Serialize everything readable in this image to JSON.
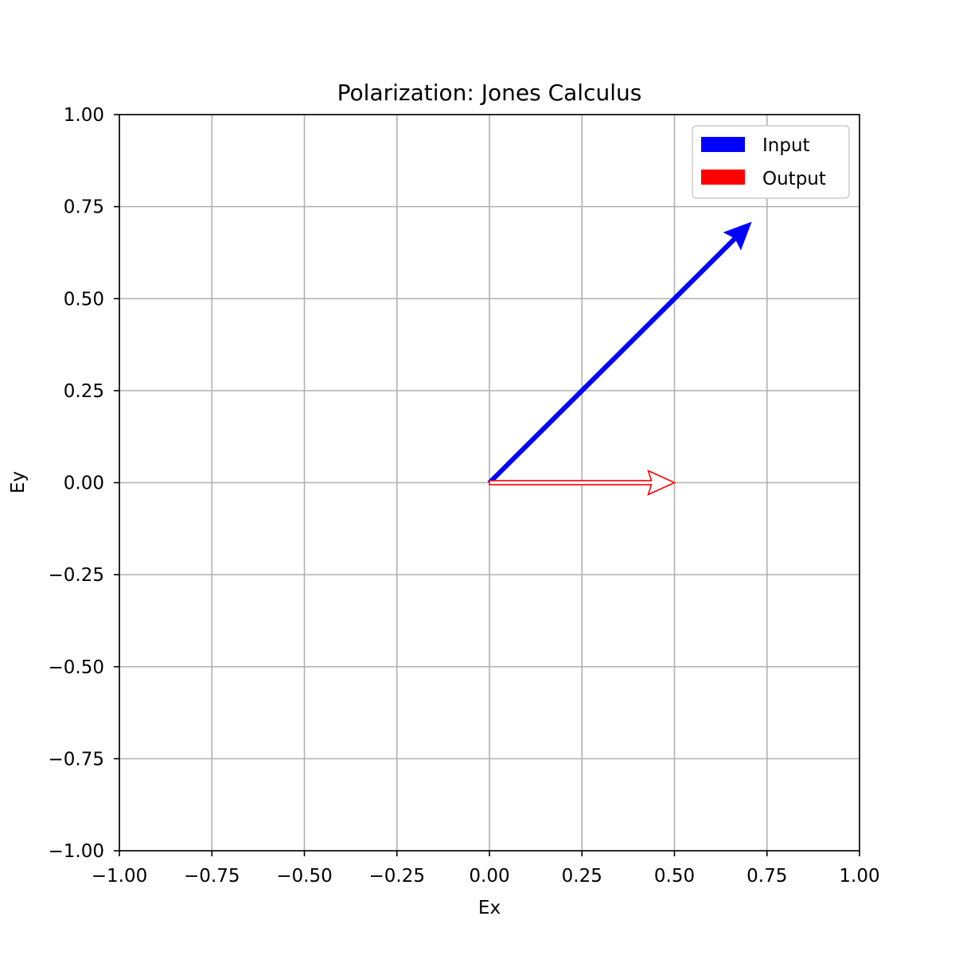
{
  "chart_data": {
    "type": "quiver",
    "title": "Polarization: Jones Calculus",
    "xlabel": "Ex",
    "ylabel": "Ey",
    "xlim": [
      -1.0,
      1.0
    ],
    "ylim": [
      -1.0,
      1.0
    ],
    "xticks": [
      "−1.00",
      "−0.75",
      "−0.50",
      "−0.25",
      "0.00",
      "0.25",
      "0.50",
      "0.75",
      "1.00"
    ],
    "yticks": [
      "−1.00",
      "−0.75",
      "−0.50",
      "−0.25",
      "0.00",
      "0.25",
      "0.50",
      "0.75",
      "1.00"
    ],
    "xtick_values": [
      -1.0,
      -0.75,
      -0.5,
      -0.25,
      0.0,
      0.25,
      0.5,
      0.75,
      1.0
    ],
    "ytick_values": [
      -1.0,
      -0.75,
      -0.5,
      -0.25,
      0.0,
      0.25,
      0.5,
      0.75,
      1.0
    ],
    "grid": true,
    "legend_position": "top-right",
    "series": [
      {
        "name": "Input",
        "color": "#0000ff",
        "x0": 0.0,
        "y0": 0.0,
        "dx": 0.707,
        "dy": 0.707,
        "style": "solid"
      },
      {
        "name": "Output",
        "color": "#ff0000",
        "x0": 0.0,
        "y0": 0.0,
        "dx": 0.5,
        "dy": 0.0,
        "style": "outline"
      }
    ]
  }
}
